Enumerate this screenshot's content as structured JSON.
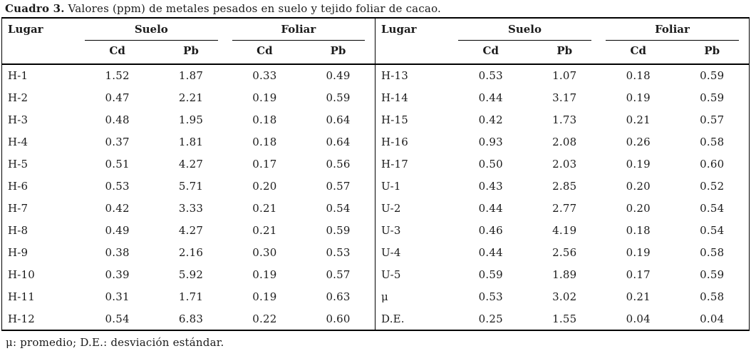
{
  "caption": {
    "label": "Cuadro 3.",
    "text": "Valores (ppm) de metales pesados en suelo y tejido foliar de cacao."
  },
  "tables": [
    {
      "headers": {
        "lugar": "Lugar",
        "group1": "Suelo",
        "group2": "Foliar",
        "sub": [
          "Cd",
          "Pb",
          "Cd",
          "Pb"
        ]
      },
      "rows": [
        [
          "H-1",
          "1.52",
          "1.87",
          "0.33",
          "0.49"
        ],
        [
          "H-2",
          "0.47",
          "2.21",
          "0.19",
          "0.59"
        ],
        [
          "H-3",
          "0.48",
          "1.95",
          "0.18",
          "0.64"
        ],
        [
          "H-4",
          "0.37",
          "1.81",
          "0.18",
          "0.64"
        ],
        [
          "H-5",
          "0.51",
          "4.27",
          "0.17",
          "0.56"
        ],
        [
          "H-6",
          "0.53",
          "5.71",
          "0.20",
          "0.57"
        ],
        [
          "H-7",
          "0.42",
          "3.33",
          "0.21",
          "0.54"
        ],
        [
          "H-8",
          "0.49",
          "4.27",
          "0.21",
          "0.59"
        ],
        [
          "H-9",
          "0.38",
          "2.16",
          "0.30",
          "0.53"
        ],
        [
          "H-10",
          "0.39",
          "5.92",
          "0.19",
          "0.57"
        ],
        [
          "H-11",
          "0.31",
          "1.71",
          "0.19",
          "0.63"
        ],
        [
          "H-12",
          "0.54",
          "6.83",
          "0.22",
          "0.60"
        ]
      ]
    },
    {
      "headers": {
        "lugar": "Lugar",
        "group1": "Suelo",
        "group2": "Foliar",
        "sub": [
          "Cd",
          "Pb",
          "Cd",
          "Pb"
        ]
      },
      "rows": [
        [
          "H-13",
          "0.53",
          "1.07",
          "0.18",
          "0.59"
        ],
        [
          "H-14",
          "0.44",
          "3.17",
          "0.19",
          "0.59"
        ],
        [
          "H-15",
          "0.42",
          "1.73",
          "0.21",
          "0.57"
        ],
        [
          "H-16",
          "0.93",
          "2.08",
          "0.26",
          "0.58"
        ],
        [
          "H-17",
          "0.50",
          "2.03",
          "0.19",
          "0.60"
        ],
        [
          "U-1",
          "0.43",
          "2.85",
          "0.20",
          "0.52"
        ],
        [
          "U-2",
          "0.44",
          "2.77",
          "0.20",
          "0.54"
        ],
        [
          "U-3",
          "0.46",
          "4.19",
          "0.18",
          "0.54"
        ],
        [
          "U-4",
          "0.44",
          "2.56",
          "0.19",
          "0.58"
        ],
        [
          "U-5",
          "0.59",
          "1.89",
          "0.17",
          "0.59"
        ],
        [
          "μ",
          "0.53",
          "3.02",
          "0.21",
          "0.58"
        ],
        [
          "D.E.",
          "0.25",
          "1.55",
          "0.04",
          "0.04"
        ]
      ]
    }
  ],
  "footnote": "μ: promedio; D.E.: desviación estándar."
}
